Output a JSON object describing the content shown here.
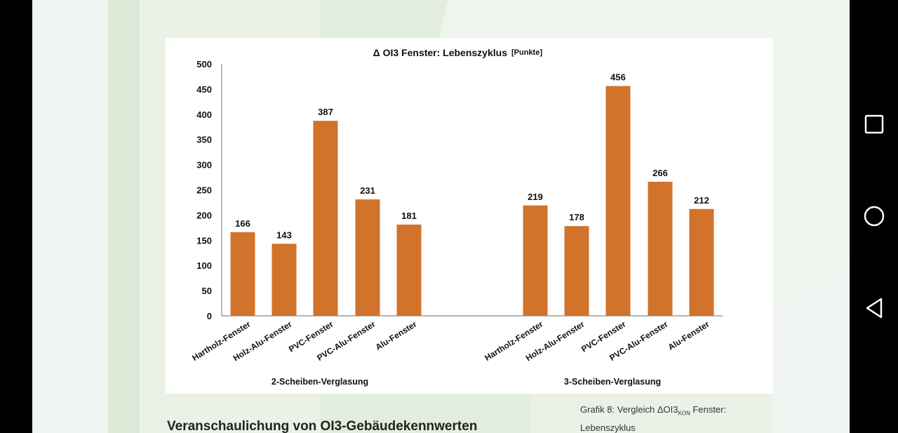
{
  "chart_data": {
    "type": "bar",
    "title": "Δ OI3 Fenster: Lebenszyklus",
    "unit": "[Punkte]",
    "ylim": [
      0,
      500
    ],
    "yticks": [
      0,
      50,
      100,
      150,
      200,
      250,
      300,
      350,
      400,
      450,
      500
    ],
    "grid": false,
    "groups": [
      {
        "name": "2-Scheiben-Verglasung",
        "categories": [
          "Hartholz-Fenster",
          "Holz-Alu-Fenster",
          "PVC-Fenster",
          "PVC-Alu-Fenster",
          "Alu-Fenster"
        ],
        "values": [
          166,
          143,
          387,
          231,
          181
        ]
      },
      {
        "name": "3-Scheiben-Verglasung",
        "categories": [
          "Hartholz-Fenster",
          "Holz-Alu-Fenster",
          "PVC-Fenster",
          "PVC-Alu-Fenster",
          "Alu-Fenster"
        ],
        "values": [
          219,
          178,
          456,
          266,
          212
        ]
      }
    ],
    "bar_color": "#d2732b"
  },
  "document": {
    "heading": "Veranschaulichung von OI3-Gebäudekennwerten",
    "caption_prefix": "Grafik 8: Vergleich ΔOI3",
    "caption_sub": "KON",
    "caption_suffix": " Fenster: Lebenszyklus"
  },
  "navbar": {
    "buttons": [
      "recents-icon",
      "home-icon",
      "back-icon"
    ]
  }
}
